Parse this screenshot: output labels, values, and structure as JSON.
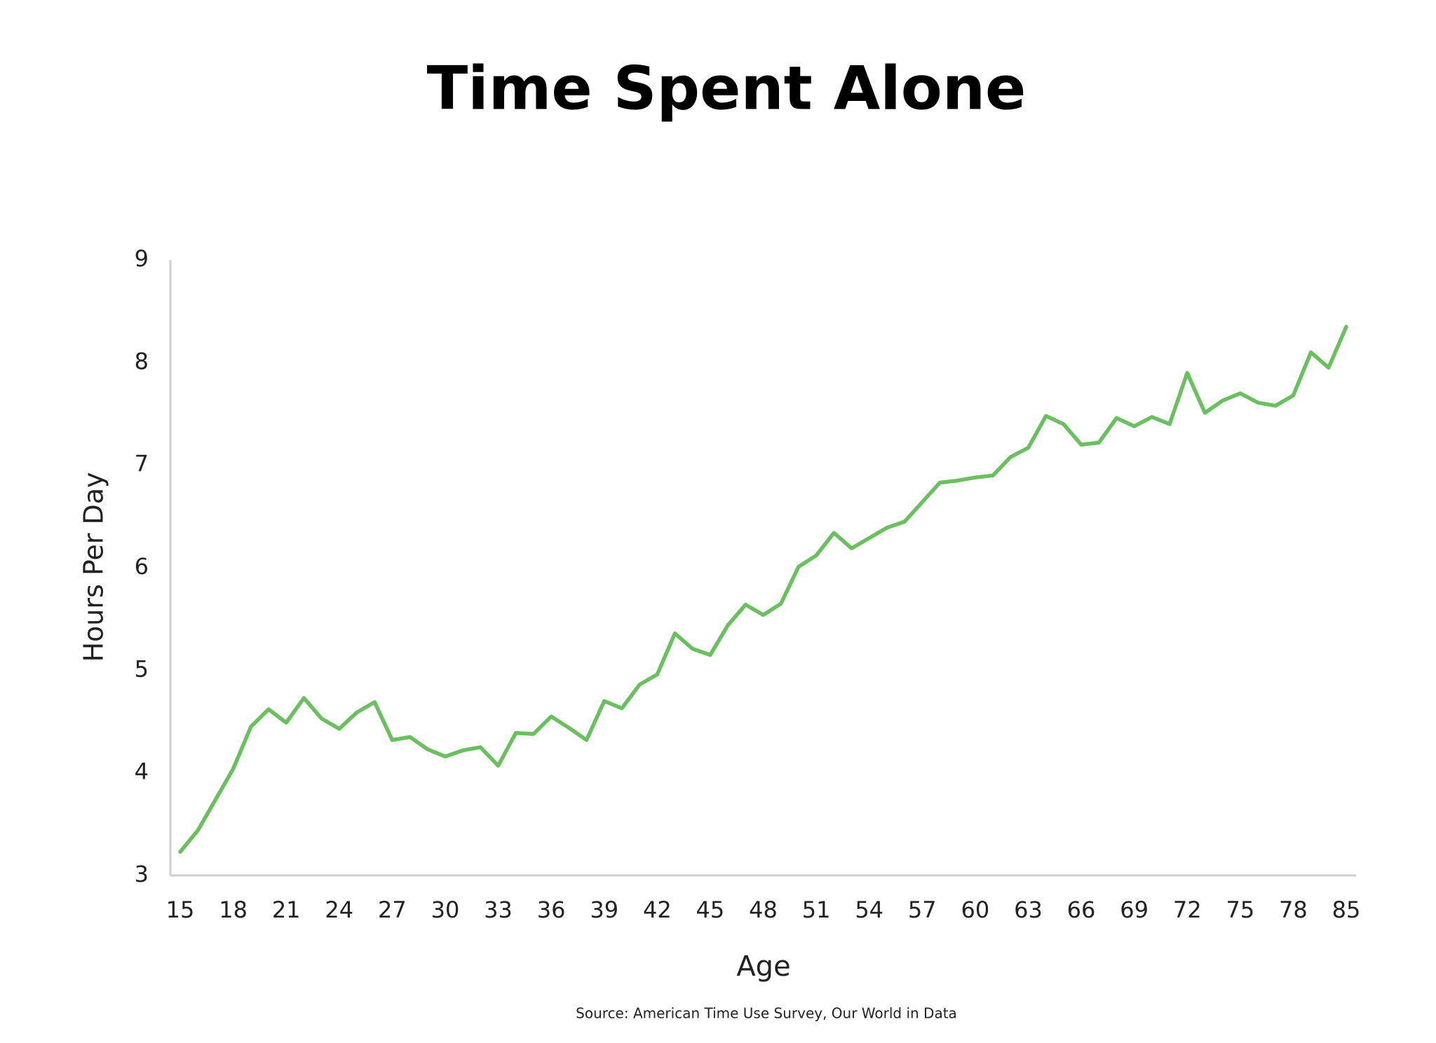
{
  "chart_data": {
    "type": "line",
    "title": "Time Spent Alone",
    "x_label": "Age",
    "y_label": "Hours Per Day",
    "source": "Source: American Time Use Survey, Our World in Data",
    "categories": [
      "15",
      null,
      null,
      "18",
      null,
      null,
      "21",
      null,
      null,
      "24",
      null,
      null,
      "27",
      null,
      null,
      "30",
      null,
      null,
      "33",
      null,
      null,
      "36",
      null,
      null,
      "39",
      null,
      null,
      "42",
      null,
      null,
      "45",
      null,
      null,
      "48",
      null,
      null,
      "51",
      null,
      null,
      "54",
      null,
      null,
      "57",
      null,
      null,
      "60",
      null,
      null,
      "63",
      null,
      null,
      "66",
      null,
      null,
      "69",
      null,
      null,
      "72",
      null,
      null,
      "75",
      null,
      null,
      "78",
      null,
      null,
      "85"
    ],
    "values": [
      3.23,
      3.44,
      3.74,
      4.04,
      4.45,
      4.62,
      4.49,
      4.73,
      4.53,
      4.43,
      4.59,
      4.69,
      4.32,
      4.35,
      4.23,
      4.16,
      4.22,
      4.25,
      4.07,
      4.39,
      4.38,
      4.55,
      4.44,
      4.32,
      4.7,
      4.63,
      4.86,
      4.96,
      5.36,
      5.21,
      5.15,
      5.44,
      5.64,
      5.54,
      5.65,
      6.01,
      6.12,
      6.34,
      6.19,
      6.29,
      6.39,
      6.45,
      6.64,
      6.83,
      6.85,
      6.88,
      6.9,
      7.08,
      7.17,
      7.48,
      7.4,
      7.2,
      7.22,
      7.46,
      7.38,
      7.47,
      7.4,
      7.9,
      7.51,
      7.63,
      7.7,
      7.61,
      7.58,
      7.68,
      8.1,
      7.95,
      8.35
    ],
    "color": "#6abf5e",
    "ylim": [
      3,
      9
    ],
    "yticks": [
      3,
      4,
      5,
      6,
      7,
      8,
      9
    ],
    "grid": false
  }
}
